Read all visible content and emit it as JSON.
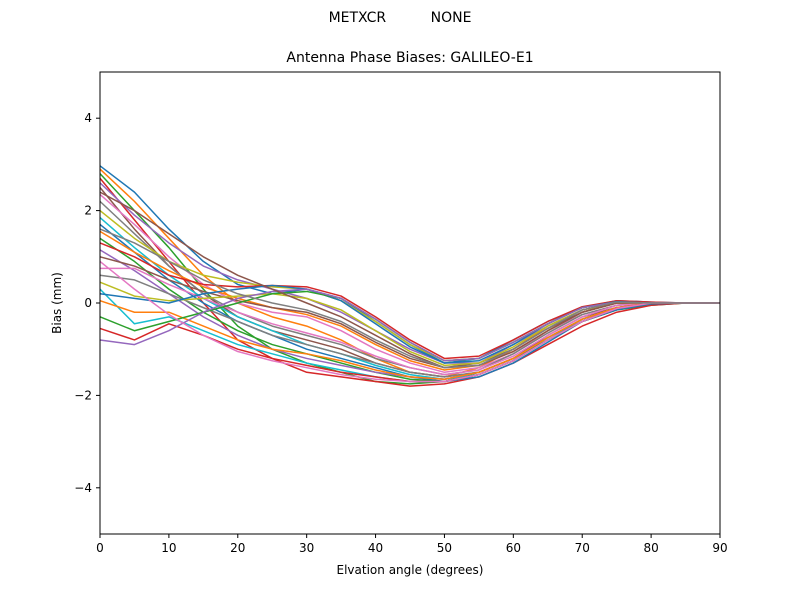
{
  "suptitle": "METXCR          NONE",
  "chart_data": {
    "type": "line",
    "title": "Antenna Phase Biases: GALILEO-E1",
    "xlabel": "Elvation angle (degrees)",
    "ylabel": "Bias (mm)",
    "xlim": [
      0,
      90
    ],
    "ylim": [
      -5,
      5
    ],
    "xticks": [
      0,
      10,
      20,
      30,
      40,
      50,
      60,
      70,
      80,
      90
    ],
    "yticks": [
      -4,
      -2,
      0,
      2,
      4
    ],
    "ytick_labels": [
      "−4",
      "−2",
      "0",
      "2",
      "4"
    ],
    "grid": false,
    "legend": "none",
    "x": [
      0,
      5,
      10,
      15,
      20,
      25,
      30,
      35,
      40,
      45,
      50,
      55,
      60,
      65,
      70,
      75,
      80,
      85,
      90
    ],
    "series": [
      {
        "values": [
          2.97,
          2.4,
          1.6,
          0.9,
          0.4,
          0.2,
          0.3,
          0.1,
          -0.4,
          -0.9,
          -1.3,
          -1.2,
          -0.8,
          -0.4,
          -0.1,
          0.05,
          0.02,
          0.0,
          0.0
        ]
      },
      {
        "values": [
          2.9,
          2.2,
          1.4,
          0.6,
          0.0,
          -0.3,
          -0.5,
          -0.8,
          -1.2,
          -1.5,
          -1.6,
          -1.4,
          -1.0,
          -0.5,
          -0.15,
          0.0,
          0.0,
          0.0,
          0.0
        ]
      },
      {
        "values": [
          2.8,
          2.0,
          1.2,
          0.3,
          -0.5,
          -1.0,
          -1.3,
          -1.5,
          -1.7,
          -1.75,
          -1.7,
          -1.5,
          -1.2,
          -0.8,
          -0.4,
          -0.15,
          -0.05,
          0.0,
          0.0
        ]
      },
      {
        "values": [
          2.7,
          1.8,
          0.9,
          0.0,
          -0.8,
          -1.2,
          -1.5,
          -1.6,
          -1.7,
          -1.8,
          -1.75,
          -1.6,
          -1.3,
          -0.9,
          -0.5,
          -0.2,
          -0.05,
          0.0,
          0.0
        ]
      },
      {
        "values": [
          2.6,
          1.9,
          1.3,
          0.8,
          0.5,
          0.3,
          0.1,
          -0.2,
          -0.6,
          -1.0,
          -1.3,
          -1.3,
          -0.9,
          -0.5,
          -0.15,
          0.0,
          0.0,
          0.0,
          0.0
        ]
      },
      {
        "values": [
          2.5,
          1.6,
          0.8,
          0.2,
          -0.3,
          -0.6,
          -0.8,
          -1.0,
          -1.3,
          -1.5,
          -1.6,
          -1.5,
          -1.2,
          -0.7,
          -0.3,
          -0.1,
          0.0,
          0.0,
          0.0
        ]
      },
      {
        "values": [
          2.35,
          1.7,
          1.0,
          0.4,
          0.0,
          -0.2,
          -0.3,
          -0.6,
          -1.0,
          -1.3,
          -1.5,
          -1.4,
          -1.1,
          -0.6,
          -0.25,
          -0.05,
          0.0,
          0.0,
          0.0
        ]
      },
      {
        "values": [
          2.2,
          1.5,
          0.8,
          0.2,
          -0.2,
          -0.5,
          -0.7,
          -0.9,
          -1.2,
          -1.4,
          -1.55,
          -1.45,
          -1.1,
          -0.65,
          -0.25,
          -0.05,
          0.0,
          0.0,
          0.0
        ]
      },
      {
        "values": [
          2.0,
          1.4,
          0.9,
          0.6,
          0.45,
          0.35,
          0.3,
          0.05,
          -0.4,
          -0.9,
          -1.25,
          -1.2,
          -0.85,
          -0.45,
          -0.1,
          0.02,
          0.0,
          0.0,
          0.0
        ]
      },
      {
        "values": [
          1.85,
          1.2,
          0.6,
          0.1,
          -0.3,
          -0.6,
          -0.9,
          -1.1,
          -1.35,
          -1.55,
          -1.65,
          -1.55,
          -1.25,
          -0.8,
          -0.35,
          -0.1,
          0.0,
          0.0,
          0.0
        ]
      },
      {
        "values": [
          1.7,
          1.1,
          0.5,
          0.0,
          -0.4,
          -0.7,
          -1.0,
          -1.2,
          -1.4,
          -1.6,
          -1.7,
          -1.6,
          -1.3,
          -0.85,
          -0.4,
          -0.15,
          -0.02,
          0.0,
          0.0
        ]
      },
      {
        "values": [
          1.55,
          1.1,
          0.7,
          0.35,
          0.1,
          -0.1,
          -0.25,
          -0.5,
          -0.9,
          -1.25,
          -1.45,
          -1.35,
          -1.05,
          -0.6,
          -0.2,
          0.0,
          0.0,
          0.0,
          0.0
        ]
      },
      {
        "values": [
          1.4,
          0.9,
          0.3,
          -0.2,
          -0.6,
          -0.9,
          -1.1,
          -1.3,
          -1.5,
          -1.65,
          -1.7,
          -1.55,
          -1.25,
          -0.8,
          -0.4,
          -0.12,
          0.0,
          0.0,
          0.0
        ]
      },
      {
        "values": [
          1.3,
          1.0,
          0.6,
          0.4,
          0.35,
          0.38,
          0.35,
          0.15,
          -0.3,
          -0.8,
          -1.2,
          -1.15,
          -0.8,
          -0.4,
          -0.08,
          0.05,
          0.02,
          0.0,
          0.0
        ]
      },
      {
        "values": [
          1.15,
          0.7,
          0.2,
          -0.3,
          -0.7,
          -1.0,
          -1.2,
          -1.35,
          -1.5,
          -1.6,
          -1.65,
          -1.5,
          -1.2,
          -0.75,
          -0.35,
          -0.1,
          0.0,
          0.0,
          0.0
        ]
      },
      {
        "values": [
          1.0,
          0.8,
          0.5,
          0.25,
          0.05,
          -0.1,
          -0.2,
          -0.45,
          -0.85,
          -1.2,
          -1.4,
          -1.3,
          -1.0,
          -0.55,
          -0.2,
          0.0,
          0.0,
          0.0,
          0.0
        ]
      },
      {
        "values": [
          0.75,
          0.75,
          0.4,
          0.1,
          -0.2,
          -0.45,
          -0.65,
          -0.85,
          -1.15,
          -1.4,
          -1.55,
          -1.45,
          -1.15,
          -0.7,
          -0.3,
          -0.05,
          0.0,
          0.0,
          0.0
        ]
      },
      {
        "values": [
          0.6,
          0.5,
          0.2,
          -0.1,
          -0.4,
          -0.7,
          -0.9,
          -1.1,
          -1.3,
          -1.5,
          -1.6,
          -1.5,
          -1.2,
          -0.75,
          -0.35,
          -0.1,
          0.0,
          0.0,
          0.0
        ]
      },
      {
        "values": [
          0.45,
          0.15,
          0.05,
          0.1,
          0.15,
          0.2,
          0.1,
          -0.15,
          -0.6,
          -1.05,
          -1.35,
          -1.3,
          -0.95,
          -0.5,
          -0.15,
          0.0,
          0.0,
          0.0,
          0.0
        ]
      },
      {
        "values": [
          0.3,
          -0.45,
          -0.3,
          -0.6,
          -0.9,
          -1.1,
          -1.3,
          -1.45,
          -1.6,
          -1.7,
          -1.7,
          -1.55,
          -1.25,
          -0.8,
          -0.4,
          -0.12,
          0.0,
          0.0,
          0.0
        ]
      },
      {
        "values": [
          0.2,
          0.1,
          0.0,
          0.2,
          0.3,
          0.38,
          0.3,
          0.05,
          -0.45,
          -0.95,
          -1.3,
          -1.25,
          -0.9,
          -0.45,
          -0.1,
          0.03,
          0.0,
          0.0,
          0.0
        ]
      },
      {
        "values": [
          0.05,
          -0.2,
          -0.2,
          -0.5,
          -0.8,
          -1.0,
          -1.1,
          -1.25,
          -1.45,
          -1.6,
          -1.65,
          -1.5,
          -1.2,
          -0.75,
          -0.35,
          -0.1,
          0.0,
          0.0,
          0.0
        ]
      },
      {
        "values": [
          -0.3,
          -0.6,
          -0.4,
          -0.2,
          0.0,
          0.2,
          0.25,
          0.1,
          -0.35,
          -0.85,
          -1.25,
          -1.2,
          -0.85,
          -0.45,
          -0.1,
          0.02,
          0.0,
          0.0,
          0.0
        ]
      },
      {
        "values": [
          -0.55,
          -0.8,
          -0.45,
          -0.7,
          -1.0,
          -1.2,
          -1.35,
          -1.5,
          -1.6,
          -1.7,
          -1.7,
          -1.55,
          -1.25,
          -0.8,
          -0.4,
          -0.12,
          0.0,
          0.0,
          0.0
        ]
      },
      {
        "values": [
          -0.8,
          -0.9,
          -0.6,
          -0.2,
          0.1,
          0.25,
          0.3,
          0.1,
          -0.35,
          -0.85,
          -1.25,
          -1.2,
          -0.85,
          -0.45,
          -0.1,
          0.02,
          0.0,
          0.0,
          0.0
        ]
      },
      {
        "values": [
          2.4,
          2.0,
          1.5,
          1.0,
          0.6,
          0.3,
          0.0,
          -0.3,
          -0.7,
          -1.1,
          -1.4,
          -1.35,
          -1.05,
          -0.6,
          -0.2,
          0.0,
          0.0,
          0.0,
          0.0
        ]
      },
      {
        "values": [
          0.9,
          0.3,
          -0.25,
          -0.7,
          -1.05,
          -1.25,
          -1.4,
          -1.55,
          -1.65,
          -1.7,
          -1.7,
          -1.55,
          -1.25,
          -0.8,
          -0.4,
          -0.12,
          0.0,
          0.0,
          0.0
        ]
      },
      {
        "values": [
          1.6,
          1.3,
          0.9,
          0.5,
          0.2,
          0.0,
          -0.15,
          -0.4,
          -0.8,
          -1.15,
          -1.4,
          -1.35,
          -1.0,
          -0.55,
          -0.15,
          0.02,
          0.0,
          0.0,
          0.0
        ]
      }
    ]
  }
}
